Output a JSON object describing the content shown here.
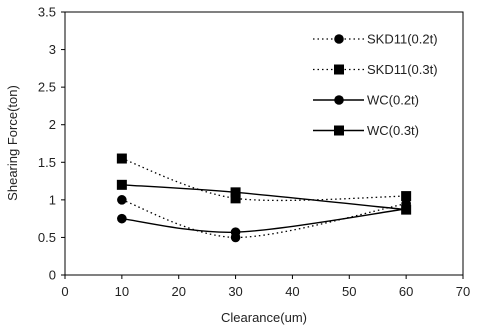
{
  "chart_data": {
    "type": "line",
    "title": "",
    "xlabel": "Clearance(um)",
    "ylabel": "Shearing Force(ton)",
    "xlim": [
      0,
      70
    ],
    "ylim": [
      0,
      3.5
    ],
    "xticks": [
      "0",
      "10",
      "20",
      "30",
      "40",
      "50",
      "60",
      "70"
    ],
    "yticks": [
      "0",
      "0.5",
      "1",
      "1.5",
      "2",
      "2.5",
      "3",
      "3.5"
    ],
    "grid": false,
    "legend_position": "top-right",
    "x": [
      10,
      30,
      60
    ],
    "series": [
      {
        "name": "SKD11(0.2t)",
        "line_style": "dotted",
        "marker": "circle",
        "values": [
          1.0,
          0.5,
          0.95
        ]
      },
      {
        "name": "SKD11(0.3t)",
        "line_style": "dotted",
        "marker": "square",
        "values": [
          1.55,
          1.02,
          1.05
        ]
      },
      {
        "name": "WC(0.2t)",
        "line_style": "solid",
        "marker": "circle",
        "values": [
          0.75,
          0.57,
          0.88
        ]
      },
      {
        "name": "WC(0.3t)",
        "line_style": "solid",
        "marker": "square",
        "values": [
          1.2,
          1.1,
          0.87
        ]
      }
    ],
    "colors": {
      "line": "#000000",
      "text": "#222222"
    }
  }
}
